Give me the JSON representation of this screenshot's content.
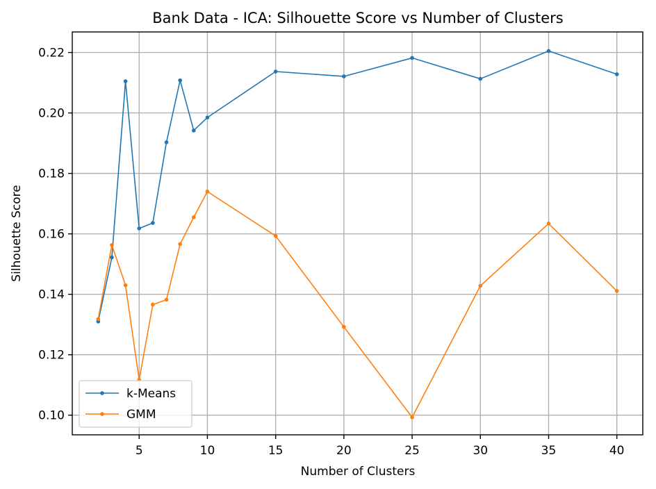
{
  "chart_data": {
    "type": "line",
    "title": "Bank Data - ICA: Silhouette Score vs Number of Clusters",
    "xlabel": "Number of Clusters",
    "ylabel": "Silhouette Score",
    "xlim": [
      0.1,
      41.9
    ],
    "ylim": [
      0.0935,
      0.2268
    ],
    "xticks": [
      5,
      10,
      15,
      20,
      25,
      30,
      35,
      40
    ],
    "yticks": [
      0.1,
      0.12,
      0.14,
      0.16,
      0.18,
      0.2,
      0.22
    ],
    "xtick_labels": [
      "5",
      "10",
      "15",
      "20",
      "25",
      "30",
      "35",
      "40"
    ],
    "ytick_labels": [
      "0.10",
      "0.12",
      "0.14",
      "0.16",
      "0.18",
      "0.20",
      "0.22"
    ],
    "grid": true,
    "legend_position": "lower-left",
    "x": [
      2,
      3,
      4,
      5,
      6,
      7,
      8,
      9,
      10,
      15,
      20,
      25,
      30,
      35,
      40
    ],
    "series": [
      {
        "name": "k-Means",
        "color": "#1f77b4",
        "marker": "dot",
        "values": [
          0.131,
          0.1522,
          0.2105,
          0.1618,
          0.1636,
          0.1903,
          0.2108,
          0.1942,
          0.1985,
          0.2137,
          0.2121,
          0.2182,
          0.2113,
          0.2205,
          0.2128
        ]
      },
      {
        "name": "GMM",
        "color": "#ff7f0e",
        "marker": "dot",
        "values": [
          0.1318,
          0.1563,
          0.143,
          0.1117,
          0.1366,
          0.1382,
          0.1566,
          0.1655,
          0.174,
          0.1593,
          0.1292,
          0.0993,
          0.1428,
          0.1634,
          0.1411
        ]
      }
    ]
  }
}
